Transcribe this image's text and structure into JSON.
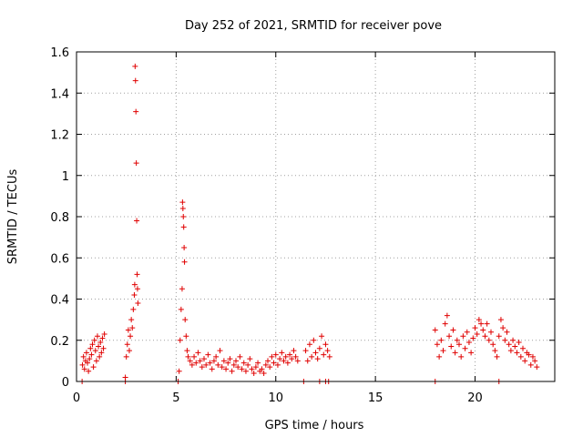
{
  "colors": {
    "series": "#e00000",
    "axis": "#000000",
    "grid": "#a0a0a0"
  },
  "chart_data": {
    "type": "scatter",
    "title": "Day 252 of 2021, SRMTID for receiver pove",
    "xlabel": "GPS time / hours",
    "ylabel": "SRMTID / TECUs",
    "xlim": [
      0,
      24
    ],
    "ylim": [
      0,
      1.6
    ],
    "xticks": [
      0,
      5,
      10,
      15,
      20
    ],
    "xtick_labels": [
      "0",
      "5",
      "10",
      "15",
      "20"
    ],
    "yticks": [
      0,
      0.2,
      0.4,
      0.6,
      0.8,
      1,
      1.2,
      1.4,
      1.6
    ],
    "ytick_labels": [
      "0",
      "0.2",
      "0.4",
      "0.6",
      "0.8",
      "1",
      "1.2",
      "1.4",
      "1.6"
    ],
    "grid": true,
    "marker": "+",
    "series": [
      {
        "name": "SRMTID",
        "x": [
          0.3,
          0.35,
          0.4,
          0.45,
          0.5,
          0.55,
          0.6,
          0.65,
          0.7,
          0.75,
          0.8,
          0.85,
          0.9,
          0.95,
          1.0,
          1.05,
          1.1,
          1.15,
          1.2,
          1.25,
          1.3,
          1.35,
          1.4,
          2.45,
          2.5,
          2.55,
          2.6,
          2.65,
          2.7,
          2.75,
          2.8,
          2.85,
          2.9,
          2.92,
          2.94,
          2.96,
          2.98,
          3.0,
          3.02,
          3.04,
          3.06,
          3.08,
          5.15,
          5.2,
          5.25,
          5.3,
          5.32,
          5.34,
          5.36,
          5.38,
          5.4,
          5.42,
          5.45,
          5.5,
          5.55,
          5.6,
          5.7,
          5.8,
          5.9,
          6.0,
          6.1,
          6.2,
          6.3,
          6.4,
          6.5,
          6.6,
          6.7,
          6.8,
          6.9,
          7.0,
          7.1,
          7.2,
          7.3,
          7.4,
          7.5,
          7.6,
          7.7,
          7.8,
          7.9,
          8.0,
          8.1,
          8.2,
          8.3,
          8.4,
          8.5,
          8.6,
          8.7,
          8.8,
          8.9,
          9.0,
          9.1,
          9.2,
          9.3,
          9.4,
          9.5,
          9.6,
          9.7,
          9.8,
          9.9,
          10.0,
          10.1,
          10.2,
          10.3,
          10.4,
          10.5,
          10.6,
          10.7,
          10.8,
          10.9,
          11.0,
          11.1,
          11.5,
          11.6,
          11.7,
          11.8,
          11.9,
          12.0,
          12.1,
          12.2,
          12.3,
          12.4,
          12.5,
          12.6,
          12.7,
          18.0,
          18.1,
          18.2,
          18.3,
          18.4,
          18.5,
          18.6,
          18.7,
          18.8,
          18.9,
          19.0,
          19.1,
          19.2,
          19.3,
          19.4,
          19.5,
          19.6,
          19.7,
          19.8,
          19.9,
          20.0,
          20.1,
          20.2,
          20.3,
          20.4,
          20.5,
          20.6,
          20.7,
          20.8,
          20.9,
          21.0,
          21.1,
          21.2,
          21.3,
          21.4,
          21.5,
          21.6,
          21.7,
          21.8,
          21.9,
          22.0,
          22.1,
          22.2,
          22.3,
          22.4,
          22.5,
          22.6,
          22.7,
          22.8,
          22.9,
          23.0,
          23.1,
          0.28,
          2.45,
          5.1,
          11.4,
          12.2,
          12.5,
          12.65,
          18.0,
          21.2
        ],
        "y": [
          0.08,
          0.12,
          0.06,
          0.1,
          0.14,
          0.09,
          0.05,
          0.11,
          0.16,
          0.13,
          0.18,
          0.07,
          0.2,
          0.15,
          0.1,
          0.22,
          0.17,
          0.12,
          0.19,
          0.14,
          0.21,
          0.16,
          0.23,
          0.02,
          0.12,
          0.18,
          0.25,
          0.15,
          0.22,
          0.3,
          0.26,
          0.35,
          0.42,
          0.47,
          1.53,
          1.46,
          1.31,
          1.06,
          0.78,
          0.52,
          0.45,
          0.38,
          0.05,
          0.2,
          0.35,
          0.45,
          0.87,
          0.84,
          0.8,
          0.75,
          0.65,
          0.58,
          0.3,
          0.22,
          0.15,
          0.12,
          0.1,
          0.08,
          0.12,
          0.09,
          0.14,
          0.1,
          0.07,
          0.11,
          0.08,
          0.13,
          0.09,
          0.06,
          0.1,
          0.12,
          0.08,
          0.15,
          0.07,
          0.1,
          0.06,
          0.09,
          0.11,
          0.05,
          0.08,
          0.1,
          0.07,
          0.12,
          0.06,
          0.09,
          0.05,
          0.08,
          0.11,
          0.06,
          0.04,
          0.07,
          0.09,
          0.05,
          0.06,
          0.04,
          0.08,
          0.1,
          0.07,
          0.12,
          0.09,
          0.13,
          0.08,
          0.11,
          0.14,
          0.1,
          0.12,
          0.09,
          0.13,
          0.11,
          0.15,
          0.12,
          0.1,
          0.15,
          0.1,
          0.18,
          0.12,
          0.2,
          0.14,
          0.11,
          0.16,
          0.22,
          0.13,
          0.18,
          0.15,
          0.12,
          0.25,
          0.18,
          0.12,
          0.2,
          0.15,
          0.28,
          0.32,
          0.22,
          0.17,
          0.25,
          0.14,
          0.2,
          0.18,
          0.12,
          0.22,
          0.16,
          0.24,
          0.19,
          0.14,
          0.21,
          0.26,
          0.23,
          0.3,
          0.28,
          0.25,
          0.22,
          0.28,
          0.2,
          0.24,
          0.18,
          0.15,
          0.12,
          0.22,
          0.3,
          0.26,
          0.2,
          0.24,
          0.18,
          0.15,
          0.2,
          0.17,
          0.14,
          0.19,
          0.12,
          0.16,
          0.1,
          0.14,
          0.13,
          0.08,
          0.12,
          0.1,
          0.07,
          0,
          0,
          0,
          0,
          0,
          0,
          0,
          0,
          0
        ]
      }
    ]
  }
}
